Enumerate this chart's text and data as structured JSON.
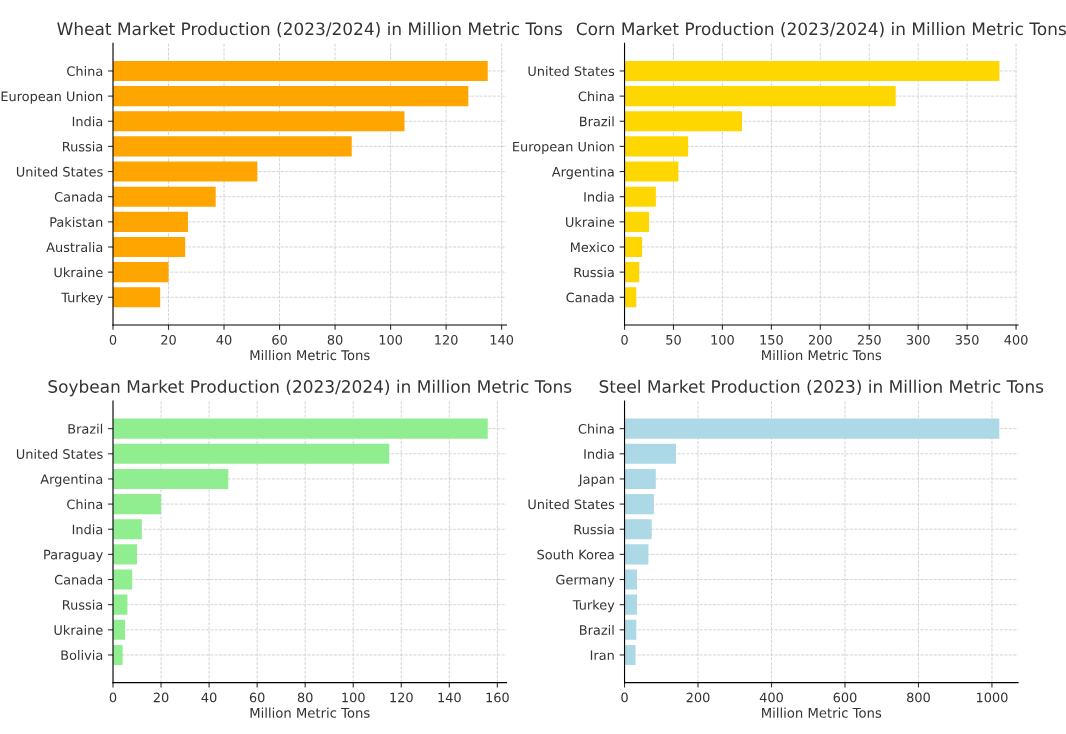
{
  "chart_data": [
    {
      "type": "bar",
      "orientation": "horizontal",
      "title": "Wheat Market Production (2023/2024) in Million Metric Tons",
      "xlabel": "Million Metric Tons",
      "categories": [
        "China",
        "European Union",
        "India",
        "Russia",
        "United States",
        "Canada",
        "Pakistan",
        "Australia",
        "Ukraine",
        "Turkey"
      ],
      "values": [
        135,
        128,
        105,
        86,
        52,
        37,
        27,
        26,
        20,
        17
      ],
      "color": "#ffa500",
      "xlim": [
        0,
        141.75
      ],
      "xticks": [
        0,
        20,
        40,
        60,
        80,
        100,
        120,
        140
      ],
      "grid": true
    },
    {
      "type": "bar",
      "orientation": "horizontal",
      "title": "Corn Market Production (2023/2024) in Million Metric Tons",
      "xlabel": "Million Metric Tons",
      "categories": [
        "United States",
        "China",
        "Brazil",
        "European Union",
        "Argentina",
        "India",
        "Ukraine",
        "Mexico",
        "Russia",
        "Canada"
      ],
      "values": [
        383,
        277,
        120,
        65,
        55,
        32,
        25,
        18,
        15,
        12
      ],
      "color": "#ffd700",
      "xlim": [
        0,
        402
      ],
      "xticks": [
        0,
        50,
        100,
        150,
        200,
        250,
        300,
        350,
        400
      ],
      "grid": true
    },
    {
      "type": "bar",
      "orientation": "horizontal",
      "title": "Soybean Market Production (2023/2024) in Million Metric Tons",
      "xlabel": "Million Metric Tons",
      "categories": [
        "Brazil",
        "United States",
        "Argentina",
        "China",
        "India",
        "Paraguay",
        "Canada",
        "Russia",
        "Ukraine",
        "Bolivia"
      ],
      "values": [
        156,
        115,
        48,
        20,
        12,
        10,
        8,
        6,
        5,
        4
      ],
      "color": "#90ee90",
      "xlim": [
        0,
        163.8
      ],
      "xticks": [
        0,
        20,
        40,
        60,
        80,
        100,
        120,
        140,
        160
      ],
      "grid": true
    },
    {
      "type": "bar",
      "orientation": "horizontal",
      "title": "Steel Market Production (2023) in Million Metric Tons",
      "xlabel": "Million Metric Tons",
      "categories": [
        "China",
        "India",
        "Japan",
        "United States",
        "Russia",
        "South Korea",
        "Germany",
        "Turkey",
        "Brazil",
        "Iran"
      ],
      "values": [
        1020,
        140,
        85,
        80,
        74,
        65,
        34,
        34,
        32,
        30
      ],
      "color": "#add8e6",
      "xlim": [
        0,
        1071
      ],
      "xticks": [
        0,
        200,
        400,
        600,
        800,
        1000
      ],
      "grid": true
    }
  ]
}
